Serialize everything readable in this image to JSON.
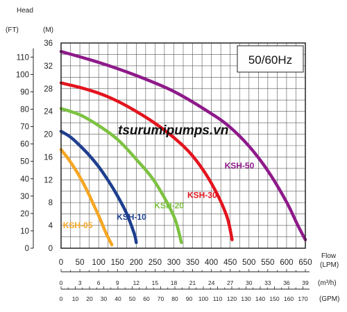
{
  "chart_data": {
    "type": "line",
    "y_left": {
      "label": "Head",
      "unit": "(FT)",
      "ticks": [
        0,
        10,
        20,
        30,
        40,
        50,
        60,
        70,
        80,
        90,
        100,
        110
      ]
    },
    "y_right": {
      "unit": "(M)",
      "ticks": [
        0,
        4,
        8,
        12,
        16,
        20,
        24,
        28,
        32,
        36
      ],
      "ylim": [
        0,
        36
      ]
    },
    "x_axes": [
      {
        "name": "Flow",
        "unit": "(LPM)",
        "ticks": [
          0,
          50,
          100,
          150,
          200,
          250,
          300,
          350,
          400,
          450,
          500,
          550,
          600,
          650
        ],
        "xlim": [
          0,
          650
        ]
      },
      {
        "unit": "(m³/h)",
        "ticks": [
          0,
          3,
          6,
          9,
          12,
          15,
          18,
          21,
          24,
          27,
          30,
          33,
          36,
          39
        ]
      },
      {
        "unit": "(GPM)",
        "ticks": [
          0,
          10,
          20,
          30,
          40,
          50,
          60,
          70,
          80,
          90,
          100,
          110,
          120,
          130,
          140,
          150,
          160,
          170
        ]
      }
    ],
    "annotation": "50/60Hz",
    "watermark": "tsurumipumps.vn",
    "grid": true,
    "series": [
      {
        "name": "KSH-05",
        "color": "#f5a623",
        "x": [
          0,
          20,
          40,
          60,
          80,
          100,
          120,
          135
        ],
        "y": [
          17.3,
          15.6,
          13.6,
          11.3,
          8.6,
          5.7,
          2.6,
          0.6
        ]
      },
      {
        "name": "KSH-10",
        "color": "#1f3f8f",
        "x": [
          0,
          25,
          50,
          75,
          100,
          125,
          150,
          175,
          195,
          200
        ],
        "y": [
          20.5,
          19.5,
          18.0,
          16.3,
          14.3,
          11.9,
          9.2,
          6.0,
          2.5,
          1.0
        ]
      },
      {
        "name": "KSH-20",
        "color": "#7dc242",
        "x": [
          0,
          50,
          100,
          150,
          200,
          250,
          300,
          320
        ],
        "y": [
          24.5,
          23.4,
          21.5,
          19.1,
          15.6,
          11.6,
          5.6,
          1.0
        ]
      },
      {
        "name": "KSH-30",
        "color": "#e3141e",
        "x": [
          0,
          50,
          100,
          150,
          200,
          250,
          300,
          350,
          400,
          440,
          455
        ],
        "y": [
          29.0,
          28.2,
          27.2,
          25.8,
          24.0,
          21.9,
          19.4,
          16.2,
          11.4,
          5.8,
          1.5
        ]
      },
      {
        "name": "KSH-50",
        "color": "#8e1a8a",
        "x": [
          0,
          100,
          200,
          300,
          400,
          450,
          500,
          550,
          600,
          630,
          650
        ],
        "y": [
          34.5,
          32.6,
          30.3,
          27.5,
          23.6,
          21.2,
          17.9,
          13.6,
          8.1,
          4.0,
          1.5
        ]
      }
    ]
  }
}
